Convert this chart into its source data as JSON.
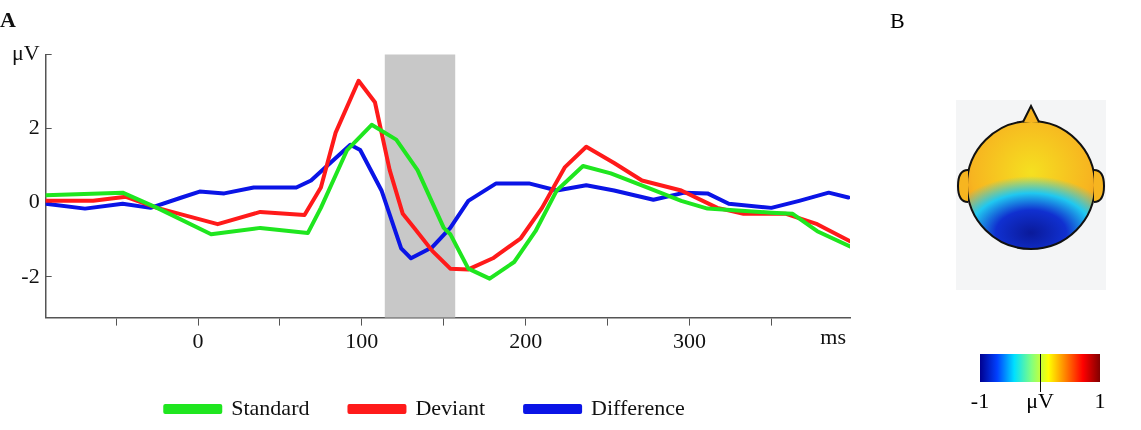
{
  "chart_data": [
    {
      "type": "line",
      "title": "A",
      "xlabel": "ms",
      "xlim": [
        -93,
        398
      ],
      "ylim": [
        -3.1,
        4
      ],
      "xticks": [
        {
          "value": -50,
          "label": null
        },
        0,
        {
          "value": 50,
          "label": null
        },
        100,
        {
          "value": 150,
          "label": null
        },
        200,
        {
          "value": 250,
          "label": null
        },
        300,
        {
          "value": 350,
          "label": null
        }
      ],
      "yticks": [
        -2,
        0,
        2,
        {
          "value": 4,
          "label": "μV"
        }
      ],
      "grid": false,
      "legend": "bottom",
      "marker": "none",
      "line_style": "solid",
      "bands": [
        {
          "axis": "x",
          "from": 114,
          "to": 157,
          "color": "#c8c8c8"
        }
      ],
      "series": [
        {
          "name": "Standard",
          "color": "#1fe61f",
          "x": [
            -93,
            -46,
            -25,
            8,
            38,
            67,
            75,
            91,
            106,
            121,
            134,
            150,
            154,
            165,
            178,
            193,
            206,
            219,
            235,
            252,
            274,
            295,
            311,
            350,
            363,
            378,
            398
          ],
          "values": [
            0.2,
            0.27,
            -0.14,
            -0.85,
            -0.68,
            -0.82,
            -0.14,
            1.42,
            2.1,
            1.7,
            0.88,
            -0.68,
            -0.85,
            -1.78,
            -2.05,
            -1.6,
            -0.77,
            0.33,
            0.99,
            0.79,
            0.41,
            0.05,
            -0.16,
            -0.27,
            -0.3,
            -0.77,
            -1.18
          ]
        },
        {
          "name": "Deviant",
          "color": "#ff1a1a",
          "x": [
            -93,
            -64,
            -44,
            -25,
            12,
            38,
            65,
            75,
            84,
            98,
            108,
            117,
            125,
            132,
            143,
            154,
            165,
            180,
            197,
            210,
            224,
            237,
            254,
            271,
            295,
            317,
            333,
            359,
            378,
            398
          ],
          "values": [
            0.05,
            0.05,
            0.16,
            -0.14,
            -0.58,
            -0.25,
            -0.33,
            0.41,
            1.89,
            3.29,
            2.71,
            0.88,
            -0.3,
            -0.68,
            -1.3,
            -1.78,
            -1.8,
            -1.5,
            -0.96,
            -0.14,
            0.96,
            1.51,
            1.07,
            0.6,
            0.33,
            -0.14,
            -0.3,
            -0.3,
            -0.58,
            -1.04
          ]
        },
        {
          "name": "Difference",
          "color": "#0a14e6",
          "x": [
            -93,
            -69,
            -46,
            -29,
            -10,
            1,
            16,
            34,
            60,
            69,
            78,
            93,
            99,
            112,
            124,
            130,
            143,
            154,
            165,
            182,
            202,
            219,
            237,
            254,
            278,
            297,
            311,
            324,
            350,
            367,
            385,
            397
          ],
          "values": [
            -0.03,
            -0.16,
            -0.03,
            -0.14,
            0.14,
            0.3,
            0.25,
            0.41,
            0.41,
            0.6,
            0.96,
            1.56,
            1.42,
            0.33,
            -1.23,
            -1.5,
            -1.2,
            -0.68,
            0.05,
            0.52,
            0.52,
            0.33,
            0.47,
            0.33,
            0.08,
            0.27,
            0.25,
            -0.03,
            -0.14,
            0.05,
            0.27,
            0.14
          ]
        }
      ]
    },
    {
      "type": "other",
      "title": "B",
      "annotations": [
        "-1",
        "μV",
        "1"
      ]
    }
  ]
}
